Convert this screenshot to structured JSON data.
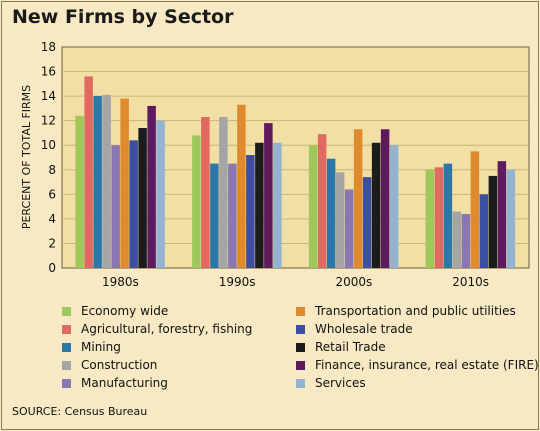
{
  "chart_data": {
    "type": "bar",
    "title": "New Firms by Sector",
    "ylabel": "PERCENT OF TOTAL FIRMS",
    "xlabel": "",
    "ylim": [
      0,
      18
    ],
    "yticks": [
      "0",
      "2",
      "4",
      "6",
      "8",
      "10",
      "12",
      "14",
      "16",
      "18"
    ],
    "grid": true,
    "categories": [
      "1980s",
      "1990s",
      "2000s",
      "2010s"
    ],
    "series": [
      {
        "name": "Economy wide",
        "color": "#9ec95a",
        "values": [
          12.4,
          10.8,
          10.0,
          8.0
        ]
      },
      {
        "name": "Agricultural, forestry, fishing",
        "color": "#e06a60",
        "values": [
          15.6,
          12.3,
          10.9,
          8.2
        ]
      },
      {
        "name": "Mining",
        "color": "#2b78a8",
        "values": [
          14.0,
          8.5,
          8.9,
          8.5
        ]
      },
      {
        "name": "Construction",
        "color": "#a5a5a5",
        "values": [
          14.1,
          12.3,
          7.8,
          4.6
        ]
      },
      {
        "name": "Manufacturing",
        "color": "#8a76b0",
        "values": [
          10.0,
          8.5,
          6.4,
          4.4
        ]
      },
      {
        "name": "Transportation and public utilities",
        "color": "#e08a2e",
        "values": [
          13.8,
          13.3,
          11.3,
          9.5
        ]
      },
      {
        "name": "Wholesale trade",
        "color": "#3c4ea0",
        "values": [
          10.4,
          9.2,
          7.4,
          6.0
        ]
      },
      {
        "name": "Retail Trade",
        "color": "#1c1c1c",
        "values": [
          11.4,
          10.2,
          10.2,
          7.5
        ]
      },
      {
        "name": "Finance, insurance, real estate (FIRE)",
        "color": "#5e1a5e",
        "values": [
          13.2,
          11.8,
          11.3,
          8.7
        ]
      },
      {
        "name": "Services",
        "color": "#93b3d1",
        "values": [
          12.0,
          10.2,
          10.0,
          8.0
        ]
      }
    ],
    "legend_placement": "bottom"
  },
  "source": "SOURCE: Census Bureau",
  "colors": {
    "background": "#f7e9c3",
    "plot_background": "#f2dfa5",
    "grid": "#c9b679"
  }
}
